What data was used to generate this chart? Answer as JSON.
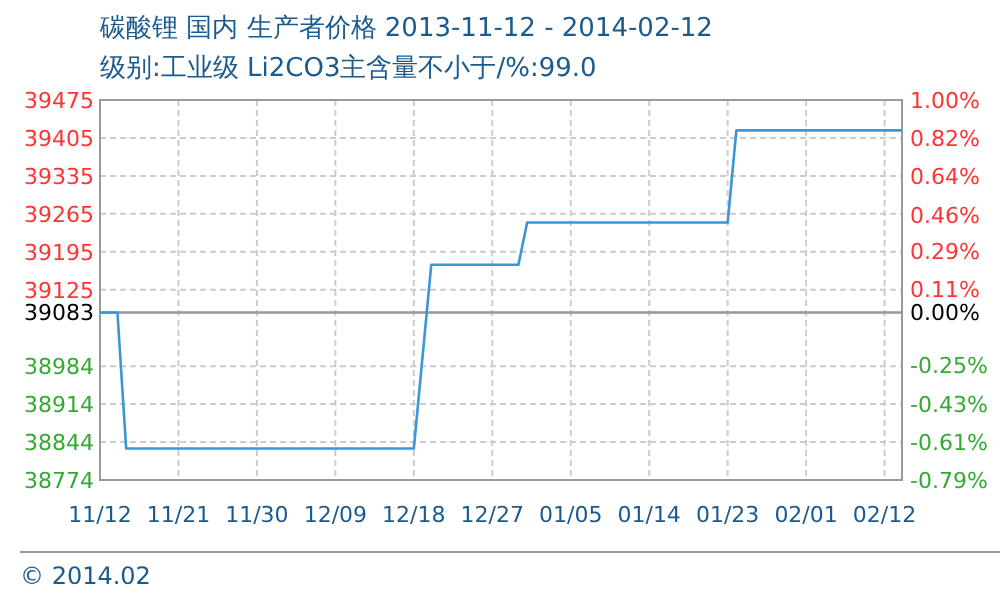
{
  "chart_data": {
    "type": "line",
    "title": "碳酸锂 国内 生产者价格 2013-11-12 - 2014-02-12",
    "subtitle": "级别:工业级 Li2CO3主含量不小于/%:99.0",
    "x": [
      "2013-11-12",
      "2013-11-14",
      "2013-11-15",
      "2013-12-18",
      "2013-12-20",
      "2013-12-30",
      "2013-12-31",
      "2014-01-23",
      "2014-01-24",
      "2014-02-12"
    ],
    "series": [
      {
        "color": "#3a96d6",
        "values": [
          39083,
          39083,
          38832,
          38832,
          39171,
          39171,
          39249,
          39249,
          39419,
          39419
        ]
      }
    ],
    "xlim": [
      "2013-11-12",
      "2014-02-12"
    ],
    "xticks": [
      {
        "value": "2013-11-12",
        "label": "11/12"
      },
      {
        "value": "2013-11-21",
        "label": "11/21"
      },
      {
        "value": "2013-11-30",
        "label": "11/30"
      },
      {
        "value": "2013-12-09",
        "label": "12/09"
      },
      {
        "value": "2013-12-18",
        "label": "12/18"
      },
      {
        "value": "2013-12-27",
        "label": "12/27"
      },
      {
        "value": "2014-01-05",
        "label": "01/05"
      },
      {
        "value": "2014-01-14",
        "label": "01/14"
      },
      {
        "value": "2014-01-23",
        "label": "01/23"
      },
      {
        "value": "2014-02-01",
        "label": "02/01"
      },
      {
        "value": "2014-02-10",
        "label": "02/12"
      }
    ],
    "ylim": [
      38774,
      39475
    ],
    "yticks": [
      38774,
      38844,
      38914,
      38984,
      39083,
      39125,
      39195,
      39265,
      39335,
      39405,
      39475
    ],
    "y2lim": [
      -0.79,
      1.0
    ],
    "y2ticks": [
      {
        "value": 1.0,
        "label": "1.00%"
      },
      {
        "value": 0.82,
        "label": "0.82%"
      },
      {
        "value": 0.64,
        "label": "0.64%"
      },
      {
        "value": 0.46,
        "label": "0.46%"
      },
      {
        "value": 0.29,
        "label": "0.29%"
      },
      {
        "value": 0.11,
        "label": "0.11%"
      },
      {
        "value": 0,
        "label": "0.00%"
      },
      {
        "value": -0.25,
        "label": "-0.25%"
      },
      {
        "value": -0.43,
        "label": "-0.43%"
      },
      {
        "value": -0.61,
        "label": "-0.61%"
      },
      {
        "value": -0.79,
        "label": "-0.79%"
      }
    ],
    "ref_lines": [
      {
        "axis": "y",
        "value": 39083,
        "color": "#999999"
      }
    ],
    "grid": true,
    "line_style": "solid",
    "marker": "none",
    "annotations": [
      "© 2014.02"
    ]
  }
}
